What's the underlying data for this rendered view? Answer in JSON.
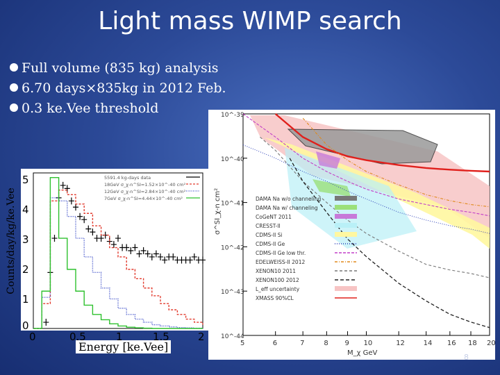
{
  "title": "Light mass WIMP search",
  "bullets": [
    "Full volume (835 kg) analysis",
    "6.70 days×835kg in 2012 Feb.",
    "0.3 ke.Vee threshold"
  ],
  "slide_number": "8",
  "colors": {
    "background": "#2c4a98",
    "title_text": "#ffffff"
  },
  "chart_data": [
    {
      "type": "line",
      "title": "",
      "xlabel": "Energy [ke.Vee]",
      "ylabel": "Counts/day/kg/ke.Vee",
      "xlim": [
        0,
        2
      ],
      "ylim": [
        0,
        5
      ],
      "x_ticks": [
        "0",
        "0.5",
        "1",
        "1.5",
        "2"
      ],
      "y_ticks": [
        "0",
        "1",
        "2",
        "3",
        "4",
        "5"
      ],
      "legend": [
        "5591.4 kg-days data",
        "18GeV σ_χ-n^SI=1.52×10^-40 cm²",
        "12GeV σ_χ-n^SI=2.84×10^-40 cm²",
        "7GeV σ_χ-n^SI=4.44×10^-40 cm²"
      ],
      "series": [
        {
          "name": "data",
          "x": [
            0.15,
            0.2,
            0.25,
            0.3,
            0.35,
            0.4,
            0.45,
            0.5,
            0.55,
            0.6,
            0.65,
            0.7,
            0.75,
            0.8,
            0.85,
            0.9,
            0.95,
            1.0,
            1.05,
            1.1,
            1.15,
            1.2,
            1.25,
            1.3,
            1.35,
            1.4,
            1.45,
            1.5,
            1.55,
            1.6,
            1.65,
            1.7,
            1.75,
            1.8,
            1.85,
            1.9,
            1.95,
            2.0
          ],
          "y": [
            0.2,
            1.8,
            2.9,
            4.2,
            4.6,
            4.5,
            4.1,
            3.9,
            3.6,
            3.5,
            3.2,
            3.1,
            2.9,
            2.9,
            3.0,
            2.8,
            2.7,
            2.9,
            2.6,
            2.6,
            2.5,
            2.6,
            2.4,
            2.5,
            2.4,
            2.3,
            2.4,
            2.3,
            2.2,
            2.3,
            2.3,
            2.2,
            2.2,
            2.2,
            2.2,
            2.3,
            2.2,
            2.2
          ]
        },
        {
          "name": "18GeV",
          "x": [
            0,
            0.1,
            0.2,
            0.3,
            0.4,
            0.5,
            0.6,
            0.7,
            0.8,
            0.9,
            1.0,
            1.1,
            1.2,
            1.3,
            1.4,
            1.5,
            1.6,
            1.7,
            1.8,
            1.9,
            2.0
          ],
          "y": [
            0,
            0.8,
            4.1,
            4.45,
            4.3,
            4.0,
            3.7,
            3.3,
            3.0,
            2.6,
            2.3,
            1.9,
            1.6,
            1.3,
            1.05,
            0.8,
            0.6,
            0.45,
            0.3,
            0.2,
            0.12
          ]
        },
        {
          "name": "12GeV",
          "x": [
            0,
            0.1,
            0.2,
            0.3,
            0.4,
            0.5,
            0.6,
            0.7,
            0.8,
            0.9,
            1.0,
            1.1,
            1.2,
            1.3,
            1.4,
            1.5,
            1.6,
            1.7,
            1.8,
            1.9,
            2.0
          ],
          "y": [
            0,
            1.0,
            4.2,
            4.1,
            3.6,
            2.9,
            2.3,
            1.8,
            1.3,
            0.95,
            0.65,
            0.45,
            0.3,
            0.2,
            0.12,
            0.08,
            0.05,
            0.03,
            0.02,
            0.01,
            0.0
          ]
        },
        {
          "name": "7GeV",
          "x": [
            0,
            0.1,
            0.2,
            0.3,
            0.4,
            0.5,
            0.6,
            0.7,
            0.8,
            0.9,
            1.0,
            1.1,
            1.2,
            1.3,
            1.4,
            1.5,
            1.6,
            1.7,
            1.8,
            1.9,
            2.0
          ],
          "y": [
            0,
            1.2,
            4.85,
            2.9,
            1.9,
            1.2,
            0.75,
            0.45,
            0.28,
            0.15,
            0.08,
            0.04,
            0.02,
            0.01,
            0,
            0,
            0,
            0,
            0,
            0,
            0
          ]
        }
      ]
    },
    {
      "type": "line",
      "title": "",
      "xlabel": "M_χ GeV",
      "ylabel": "σ^SI_χ-n cm²",
      "xlim": [
        5,
        20
      ],
      "ylim": [
        "1e-44",
        "1e-39"
      ],
      "x_ticks": [
        "5",
        "6",
        "7",
        "8",
        "9",
        "10",
        "12",
        "14",
        "16",
        "18",
        "20"
      ],
      "y_ticks": [
        "10^-39",
        "10^-40",
        "10^-41",
        "10^-42",
        "10^-43",
        "10^-44"
      ],
      "legend": [
        "DAMA Na w/o channeling",
        "DAMA Na w/ channeling",
        "CoGeNT 2011",
        "CRESST-II",
        "CDMS-II Si",
        "CDMS-II Ge",
        "CDMS-II Ge low thr.",
        "EDELWEISS-II 2012",
        "XENON10 2011",
        "XENON100 2012",
        "L_eff uncertainty",
        "XMASS 90%CL"
      ],
      "series": [
        {
          "name": "XMASS 90%CL",
          "x": [
            6,
            7,
            8,
            9,
            10,
            12,
            14,
            16,
            18,
            20
          ],
          "y": [
            "1e-39",
            "3e-40",
            "1.6e-40",
            "1.1e-40",
            "9e-41",
            "7e-41",
            "6e-41",
            "5.5e-41",
            "5.2e-41",
            "5e-41"
          ]
        },
        {
          "name": "CDMS-II Ge low thr.",
          "x": [
            5,
            6,
            7,
            8,
            9,
            10,
            12,
            14,
            16,
            18,
            20
          ],
          "y": [
            "1e-39",
            "3e-40",
            "1e-40",
            "5e-41",
            "3e-41",
            "2e-41",
            "1.2e-41",
            "9e-42",
            "7e-42",
            "6e-42",
            "5e-42"
          ]
        },
        {
          "name": "EDELWEISS-II 2012",
          "x": [
            7,
            8,
            9,
            10,
            12,
            14,
            16,
            18,
            20
          ],
          "y": [
            "8e-40",
            "2e-40",
            "9e-41",
            "5e-41",
            "2.5e-41",
            "1.5e-41",
            "1.1e-41",
            "9e-42",
            "8e-42"
          ]
        },
        {
          "name": "XENON10 2011",
          "x": [
            5.5,
            6,
            7,
            8,
            9,
            10,
            12,
            14,
            16,
            18,
            20
          ],
          "y": [
            "3e-40",
            "1.5e-40",
            "3e-41",
            "1e-41",
            "4e-42",
            "2e-42",
            "8e-43",
            "4e-43",
            "3e-43",
            "2.5e-43",
            "2e-43"
          ]
        },
        {
          "name": "XENON100 2012",
          "x": [
            6.5,
            7,
            8,
            9,
            10,
            12,
            14,
            16,
            18,
            20
          ],
          "y": [
            "1e-40",
            "3e-41",
            "6e-42",
            "1.5e-42",
            "6e-43",
            "1.5e-43",
            "6e-44",
            "3e-44",
            "2e-44",
            "1.5e-44"
          ]
        },
        {
          "name": "CDMS-II Si",
          "x": [
            5,
            6,
            7,
            8,
            9,
            10,
            12,
            14,
            16,
            18,
            20
          ],
          "y": [
            "2e-40",
            "1e-40",
            "5e-41",
            "3e-41",
            "1.8e-41",
            "1.2e-41",
            "6e-42",
            "4e-42",
            "3e-42",
            "2.5e-42",
            "2e-42"
          ]
        }
      ]
    }
  ]
}
